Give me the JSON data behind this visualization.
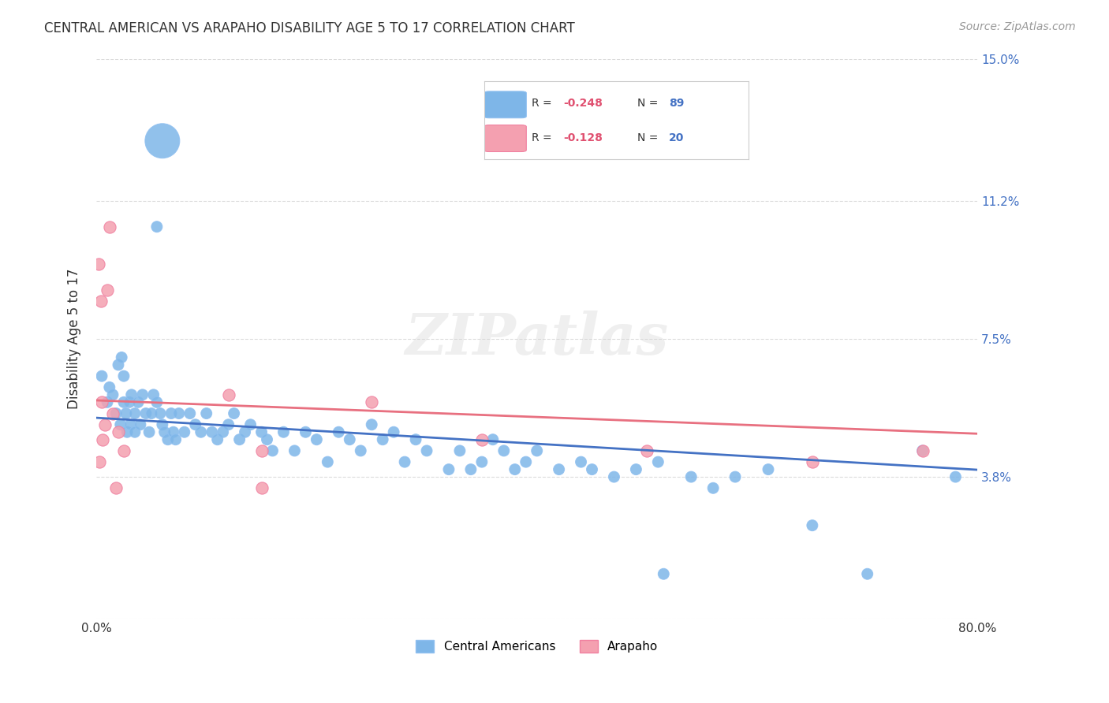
{
  "title": "CENTRAL AMERICAN VS ARAPAHO DISABILITY AGE 5 TO 17 CORRELATION CHART",
  "source": "Source: ZipAtlas.com",
  "xlabel": "",
  "ylabel": "Disability Age 5 to 17",
  "xlim": [
    0.0,
    80.0
  ],
  "ylim": [
    0.0,
    15.0
  ],
  "yticks": [
    0.0,
    3.8,
    7.5,
    11.2,
    15.0
  ],
  "ytick_labels": [
    "",
    "3.8%",
    "7.5%",
    "11.2%",
    "15.0%"
  ],
  "xticks": [
    0.0,
    10.0,
    20.0,
    30.0,
    40.0,
    50.0,
    60.0,
    70.0,
    80.0
  ],
  "xtick_labels": [
    "0.0%",
    "",
    "",
    "",
    "",
    "",
    "",
    "",
    "80.0%"
  ],
  "color_blue": "#7EB6E8",
  "color_pink": "#F4A0B0",
  "color_blue_line": "#4472C4",
  "color_pink_line": "#E87080",
  "color_blue_dark": "#4472C4",
  "color_pink_dark": "#E05070",
  "watermark": "ZIPatlas",
  "legend_blue_R": "R = −0.248",
  "legend_blue_N": "N = 89",
  "legend_pink_R": "R = −0.128",
  "legend_pink_N": "N = 20",
  "blue_R": -0.248,
  "blue_N": 89,
  "pink_R": -0.128,
  "pink_N": 20,
  "central_american_x": [
    0.5,
    1.0,
    1.2,
    1.5,
    1.8,
    2.0,
    2.2,
    2.3,
    2.5,
    2.5,
    2.7,
    2.8,
    3.0,
    3.1,
    3.2,
    3.5,
    3.5,
    3.8,
    4.0,
    4.2,
    4.5,
    4.8,
    5.0,
    5.2,
    5.5,
    5.8,
    6.0,
    6.2,
    6.5,
    6.8,
    7.0,
    7.2,
    7.5,
    8.0,
    8.5,
    9.0,
    9.5,
    10.0,
    10.5,
    11.0,
    11.5,
    12.0,
    12.5,
    13.0,
    13.5,
    14.0,
    15.0,
    15.5,
    16.0,
    17.0,
    18.0,
    19.0,
    20.0,
    21.0,
    22.0,
    23.0,
    24.0,
    25.0,
    26.0,
    27.0,
    28.0,
    29.0,
    30.0,
    32.0,
    33.0,
    34.0,
    35.0,
    36.0,
    37.0,
    38.0,
    39.0,
    40.0,
    42.0,
    44.0,
    45.0,
    47.0,
    49.0,
    51.0,
    54.0,
    56.0,
    58.0,
    61.0,
    65.0,
    70.0,
    75.0,
    78.0,
    51.5,
    6.0,
    5.5
  ],
  "central_american_y": [
    6.5,
    5.8,
    6.2,
    6.0,
    5.5,
    6.8,
    5.2,
    7.0,
    6.5,
    5.8,
    5.5,
    5.0,
    5.8,
    5.2,
    6.0,
    5.5,
    5.0,
    5.8,
    5.2,
    6.0,
    5.5,
    5.0,
    5.5,
    6.0,
    5.8,
    5.5,
    5.2,
    5.0,
    4.8,
    5.5,
    5.0,
    4.8,
    5.5,
    5.0,
    5.5,
    5.2,
    5.0,
    5.5,
    5.0,
    4.8,
    5.0,
    5.2,
    5.5,
    4.8,
    5.0,
    5.2,
    5.0,
    4.8,
    4.5,
    5.0,
    4.5,
    5.0,
    4.8,
    4.2,
    5.0,
    4.8,
    4.5,
    5.2,
    4.8,
    5.0,
    4.2,
    4.8,
    4.5,
    4.0,
    4.5,
    4.0,
    4.2,
    4.8,
    4.5,
    4.0,
    4.2,
    4.5,
    4.0,
    4.2,
    4.0,
    3.8,
    4.0,
    4.2,
    3.8,
    3.5,
    3.8,
    4.0,
    2.5,
    1.2,
    4.5,
    3.8,
    1.2,
    12.8,
    10.5
  ],
  "central_american_size": [
    20,
    20,
    20,
    20,
    20,
    20,
    20,
    20,
    20,
    20,
    20,
    20,
    20,
    20,
    20,
    20,
    20,
    20,
    20,
    20,
    20,
    20,
    20,
    20,
    20,
    20,
    20,
    20,
    20,
    20,
    20,
    20,
    20,
    20,
    20,
    20,
    20,
    20,
    20,
    20,
    20,
    20,
    20,
    20,
    20,
    20,
    20,
    20,
    20,
    20,
    20,
    20,
    20,
    20,
    20,
    20,
    20,
    20,
    20,
    20,
    20,
    20,
    20,
    20,
    20,
    20,
    20,
    20,
    20,
    20,
    20,
    20,
    20,
    20,
    20,
    20,
    20,
    20,
    20,
    20,
    20,
    20,
    20,
    20,
    20,
    20,
    20,
    200,
    20
  ],
  "arapaho_x": [
    0.2,
    0.4,
    0.5,
    0.8,
    1.0,
    1.2,
    1.5,
    2.0,
    2.5,
    12.0,
    15.0,
    25.0,
    35.0,
    50.0,
    65.0,
    75.0,
    0.3,
    0.6,
    1.8,
    15.0
  ],
  "arapaho_y": [
    9.5,
    8.5,
    5.8,
    5.2,
    8.8,
    10.5,
    5.5,
    5.0,
    4.5,
    6.0,
    4.5,
    5.8,
    4.8,
    4.5,
    4.2,
    4.5,
    4.2,
    4.8,
    3.5,
    3.5
  ]
}
